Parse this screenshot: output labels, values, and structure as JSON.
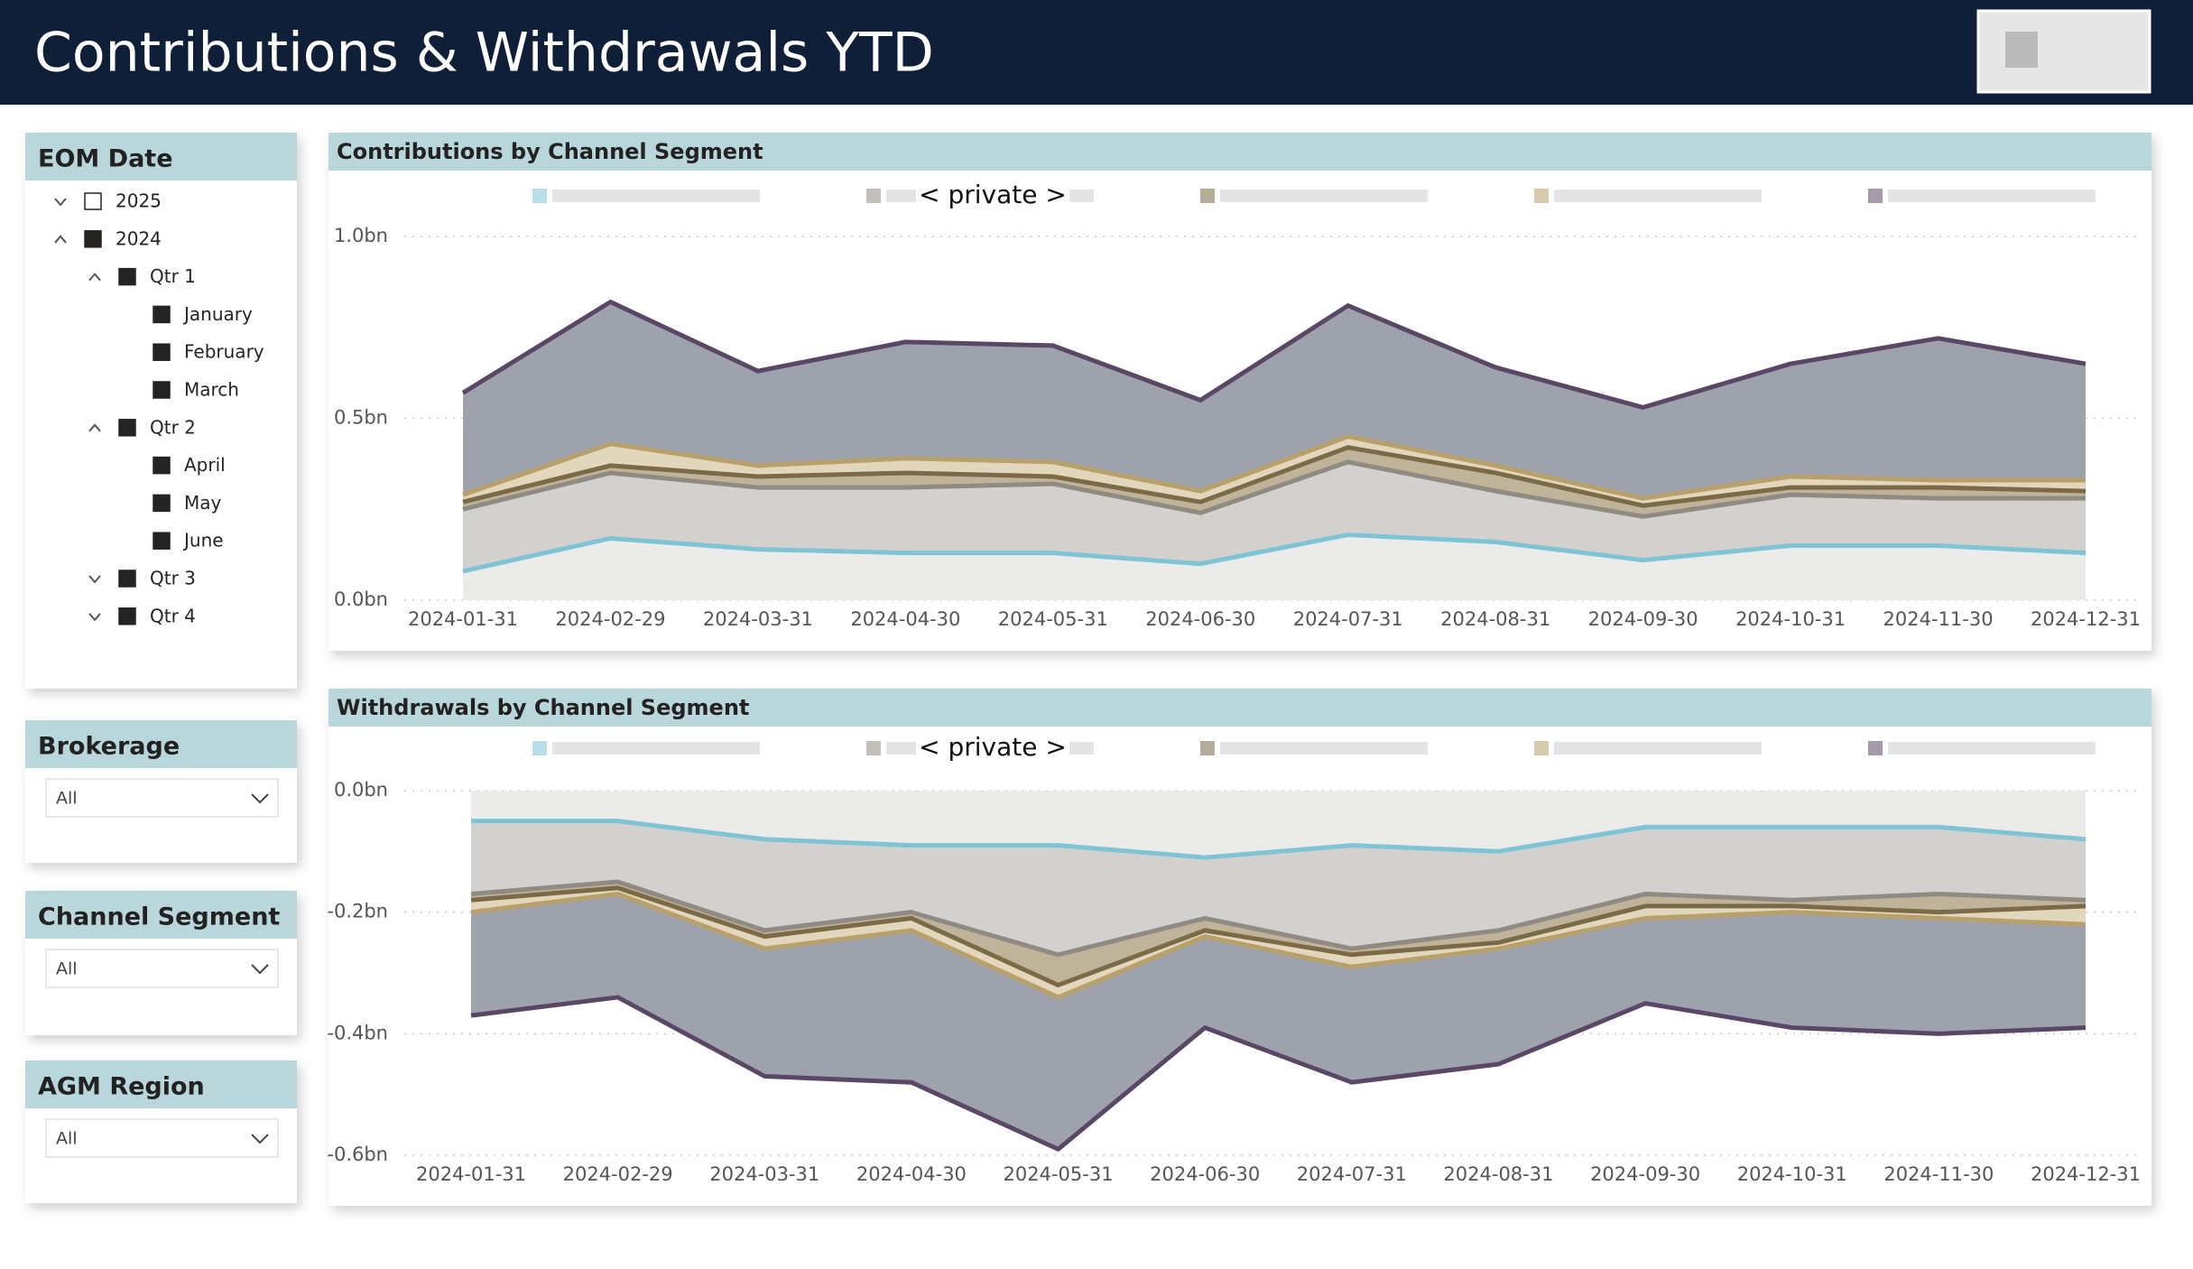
{
  "header": {
    "title": "Contributions & Withdrawals YTD"
  },
  "slicers": [
    {
      "title": "EOM Date",
      "items": [
        {
          "label": "2025",
          "level": 0,
          "checked": false,
          "expanded": false
        },
        {
          "label": "2024",
          "level": 0,
          "checked": true,
          "expanded": true
        },
        {
          "label": "Qtr 1",
          "level": 1,
          "checked": true,
          "expanded": true
        },
        {
          "label": "January",
          "level": 2,
          "checked": true
        },
        {
          "label": "February",
          "level": 2,
          "checked": true
        },
        {
          "label": "March",
          "level": 2,
          "checked": true
        },
        {
          "label": "Qtr 2",
          "level": 1,
          "checked": true,
          "expanded": true
        },
        {
          "label": "April",
          "level": 2,
          "checked": true
        },
        {
          "label": "May",
          "level": 2,
          "checked": true
        },
        {
          "label": "June",
          "level": 2,
          "checked": true
        },
        {
          "label": "Qtr 3",
          "level": 1,
          "checked": true,
          "expanded": false
        },
        {
          "label": "Qtr 4",
          "level": 1,
          "checked": true,
          "expanded": false
        }
      ]
    },
    {
      "title": "Brokerage",
      "value": "All"
    },
    {
      "title": "Channel Segment",
      "value": "All"
    },
    {
      "title": "AGM Region",
      "value": "All"
    }
  ],
  "chart_data": [
    {
      "type": "area",
      "title": "Contributions by Channel Segment",
      "legend": "< private >",
      "categories": [
        "2024-01-31",
        "2024-02-29",
        "2024-03-31",
        "2024-04-30",
        "2024-05-31",
        "2024-06-30",
        "2024-07-31",
        "2024-08-31",
        "2024-09-30",
        "2024-10-31",
        "2024-11-30",
        "2024-12-31"
      ],
      "ylim": [
        0,
        1.0
      ],
      "yticks": [
        {
          "value": 0,
          "label": "0.0bn"
        },
        {
          "value": 0.5,
          "label": "0.5bn"
        },
        {
          "value": 1.0,
          "label": "1.0bn"
        }
      ],
      "grid": true,
      "series": [
        {
          "color": "#7ec4d4",
          "fill": "#ebebea",
          "values": [
            0.08,
            0.17,
            0.14,
            0.13,
            0.13,
            0.1,
            0.18,
            0.16,
            0.11,
            0.15,
            0.15,
            0.13
          ]
        },
        {
          "color": "#8f8a82",
          "fill": "#d3d1ce",
          "values": [
            0.17,
            0.18,
            0.17,
            0.18,
            0.19,
            0.14,
            0.2,
            0.14,
            0.12,
            0.14,
            0.13,
            0.15
          ]
        },
        {
          "color": "#7a6a45",
          "fill": "#bfb39a",
          "values": [
            0.02,
            0.02,
            0.03,
            0.04,
            0.02,
            0.03,
            0.04,
            0.05,
            0.03,
            0.02,
            0.03,
            0.02
          ]
        },
        {
          "color": "#b8a06a",
          "fill": "#e2d7bc",
          "values": [
            0.02,
            0.06,
            0.03,
            0.04,
            0.04,
            0.03,
            0.03,
            0.02,
            0.02,
            0.03,
            0.02,
            0.03
          ]
        },
        {
          "color": "#5a4766",
          "fill": "#9ea2ad",
          "values": [
            0.28,
            0.39,
            0.26,
            0.32,
            0.32,
            0.25,
            0.36,
            0.27,
            0.25,
            0.31,
            0.39,
            0.32
          ]
        }
      ]
    },
    {
      "type": "area",
      "title": "Withdrawals by Channel Segment",
      "legend": "< private >",
      "categories": [
        "2024-01-31",
        "2024-02-29",
        "2024-03-31",
        "2024-04-30",
        "2024-05-31",
        "2024-06-30",
        "2024-07-31",
        "2024-08-31",
        "2024-09-30",
        "2024-10-31",
        "2024-11-30",
        "2024-12-31"
      ],
      "ylim": [
        -0.6,
        0
      ],
      "yticks": [
        {
          "value": 0,
          "label": "0.0bn"
        },
        {
          "value": -0.2,
          "label": "-0.2bn"
        },
        {
          "value": -0.4,
          "label": "-0.4bn"
        },
        {
          "value": -0.6,
          "label": "-0.6bn"
        }
      ],
      "grid": true,
      "series": [
        {
          "color": "#7ec4d4",
          "fill": "#ebebea",
          "values": [
            -0.05,
            -0.05,
            -0.08,
            -0.09,
            -0.09,
            -0.11,
            -0.09,
            -0.1,
            -0.06,
            -0.06,
            -0.06,
            -0.08
          ]
        },
        {
          "color": "#8f8a82",
          "fill": "#d3d1ce",
          "values": [
            -0.12,
            -0.1,
            -0.15,
            -0.11,
            -0.18,
            -0.1,
            -0.17,
            -0.13,
            -0.11,
            -0.12,
            -0.11,
            -0.1
          ]
        },
        {
          "color": "#7a6a45",
          "fill": "#bfb39a",
          "values": [
            -0.01,
            -0.01,
            -0.01,
            -0.01,
            -0.05,
            -0.02,
            -0.01,
            -0.02,
            -0.02,
            -0.01,
            -0.03,
            -0.01
          ]
        },
        {
          "color": "#b8a06a",
          "fill": "#e2d7bc",
          "values": [
            -0.02,
            -0.01,
            -0.02,
            -0.02,
            -0.02,
            -0.01,
            -0.02,
            -0.01,
            -0.02,
            -0.01,
            -0.01,
            -0.03
          ]
        },
        {
          "color": "#5a4766",
          "fill": "#9ea2ad",
          "values": [
            -0.17,
            -0.17,
            -0.21,
            -0.25,
            -0.25,
            -0.15,
            -0.19,
            -0.19,
            -0.14,
            -0.19,
            -0.19,
            -0.17
          ]
        }
      ]
    }
  ]
}
